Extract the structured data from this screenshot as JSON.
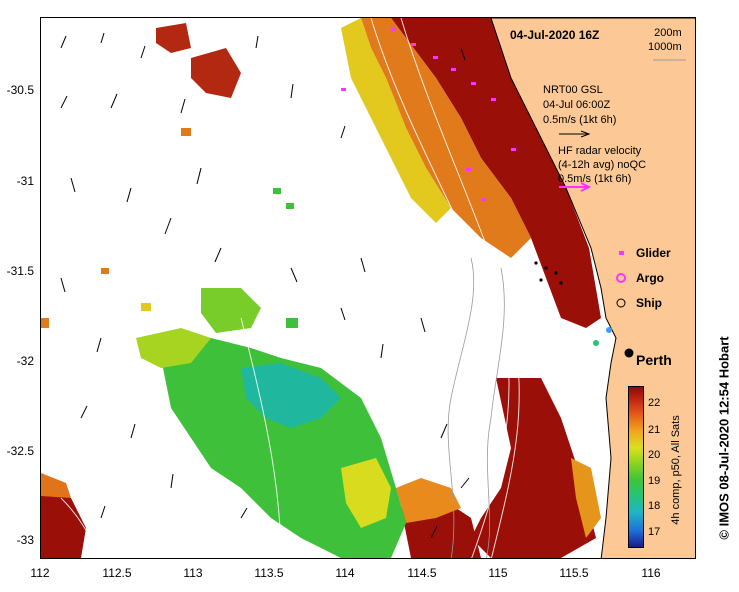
{
  "title": "04-Jul-2020 16Z",
  "contour_legend": [
    "200m",
    "1000m"
  ],
  "current_legend": {
    "lines": [
      "NRT00 GSL",
      "04-Jul 06:00Z",
      "0.5m/s (1kt 6h)"
    ]
  },
  "radar_legend": {
    "lines": [
      "HF radar velocity",
      "(4-12h avg) noQC",
      "0.5m/s (1kt 6h)"
    ]
  },
  "markers": {
    "glider": "Glider",
    "argo": "Argo",
    "ship": "Ship"
  },
  "city": "Perth",
  "colorbar": {
    "label": "4h comp, p50, All Sats",
    "ticks": [
      "22",
      "21",
      "20",
      "19",
      "18",
      "17"
    ]
  },
  "credit": "© IMOS 08-Jul-2020 12:54 Hobart",
  "axes": {
    "x_ticks": [
      "112",
      "112.5",
      "113",
      "113.5",
      "114",
      "114.5",
      "115",
      "115.5",
      "116"
    ],
    "y_ticks": [
      "-30.5",
      "-31",
      "-31.5",
      "-32",
      "-32.5",
      "-33"
    ]
  },
  "colors": {
    "land": "#fbc896",
    "glider": "#ff33ff",
    "hot": "#9a0f08"
  },
  "icons": [
    "glider-marker-icon",
    "argo-marker-icon",
    "ship-marker-icon",
    "city-marker-icon",
    "arrow-icon"
  ]
}
